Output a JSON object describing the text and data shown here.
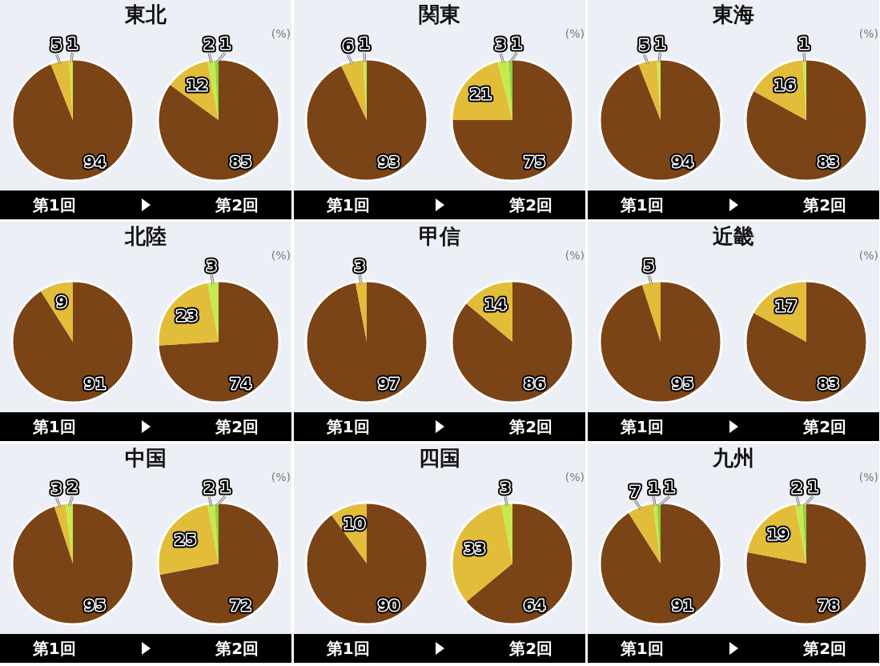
{
  "chart_data": [
    {
      "type": "pie",
      "title": "東北",
      "xlabel": "第1回",
      "categories": [
        null,
        null,
        null
      ],
      "values": [
        94,
        5,
        1
      ],
      "colors": [
        "#7b4416",
        "#e2bd3a",
        "#c6ea4e"
      ],
      "data_labels": true
    },
    {
      "type": "pie",
      "xlabel": "第2回",
      "annotations": [
        "(%)"
      ],
      "categories": [
        null,
        null,
        null,
        null
      ],
      "values": [
        85,
        12,
        2,
        1
      ],
      "colors": [
        "#7b4416",
        "#e2bd3a",
        "#c6ea4e",
        "#8fcf3c"
      ],
      "data_labels": true
    },
    {
      "type": "pie",
      "title": "関東",
      "xlabel": "第1回",
      "categories": [
        null,
        null,
        null
      ],
      "values": [
        93,
        6,
        1
      ],
      "colors": [
        "#7b4416",
        "#e2bd3a",
        "#c6ea4e"
      ],
      "data_labels": true
    },
    {
      "type": "pie",
      "xlabel": "第2回",
      "annotations": [
        "(%)"
      ],
      "categories": [
        null,
        null,
        null,
        null
      ],
      "values": [
        75,
        21,
        3,
        1
      ],
      "colors": [
        "#7b4416",
        "#e2bd3a",
        "#c6ea4e",
        "#8fcf3c"
      ],
      "data_labels": true
    },
    {
      "type": "pie",
      "title": "東海",
      "xlabel": "第1回",
      "categories": [
        null,
        null,
        null
      ],
      "values": [
        94,
        5,
        1
      ],
      "colors": [
        "#7b4416",
        "#e2bd3a",
        "#c6ea4e"
      ],
      "data_labels": true
    },
    {
      "type": "pie",
      "xlabel": "第2回",
      "annotations": [
        "(%)"
      ],
      "categories": [
        null,
        null,
        null
      ],
      "values": [
        83,
        16,
        1
      ],
      "colors": [
        "#7b4416",
        "#e2bd3a",
        "#c6ea4e"
      ],
      "data_labels": true
    },
    {
      "type": "pie",
      "title": "北陸",
      "xlabel": "第1回",
      "categories": [
        null,
        null
      ],
      "values": [
        91,
        9
      ],
      "colors": [
        "#7b4416",
        "#e2bd3a"
      ],
      "data_labels": true
    },
    {
      "type": "pie",
      "xlabel": "第2回",
      "annotations": [
        "(%)"
      ],
      "categories": [
        null,
        null,
        null
      ],
      "values": [
        74,
        23,
        3
      ],
      "colors": [
        "#7b4416",
        "#e2bd3a",
        "#c6ea4e"
      ],
      "data_labels": true
    },
    {
      "type": "pie",
      "title": "甲信",
      "xlabel": "第1回",
      "categories": [
        null,
        null
      ],
      "values": [
        97,
        3
      ],
      "colors": [
        "#7b4416",
        "#e2bd3a"
      ],
      "data_labels": true
    },
    {
      "type": "pie",
      "xlabel": "第2回",
      "annotations": [
        "(%)"
      ],
      "categories": [
        null,
        null
      ],
      "values": [
        86,
        14
      ],
      "colors": [
        "#7b4416",
        "#e2bd3a"
      ],
      "data_labels": true
    },
    {
      "type": "pie",
      "title": "近畿",
      "xlabel": "第1回",
      "categories": [
        null,
        null
      ],
      "values": [
        95,
        5
      ],
      "colors": [
        "#7b4416",
        "#e2bd3a"
      ],
      "data_labels": true
    },
    {
      "type": "pie",
      "xlabel": "第2回",
      "annotations": [
        "(%)"
      ],
      "categories": [
        null,
        null
      ],
      "values": [
        83,
        17
      ],
      "colors": [
        "#7b4416",
        "#e2bd3a"
      ],
      "data_labels": true
    },
    {
      "type": "pie",
      "title": "中国",
      "xlabel": "第1回",
      "categories": [
        null,
        null,
        null
      ],
      "values": [
        95,
        3,
        2
      ],
      "colors": [
        "#7b4416",
        "#e2bd3a",
        "#c6ea4e"
      ],
      "data_labels": true
    },
    {
      "type": "pie",
      "xlabel": "第2回",
      "annotations": [
        "(%)"
      ],
      "categories": [
        null,
        null,
        null,
        null
      ],
      "values": [
        72,
        25,
        2,
        1
      ],
      "colors": [
        "#7b4416",
        "#e2bd3a",
        "#c6ea4e",
        "#8fcf3c"
      ],
      "data_labels": true
    },
    {
      "type": "pie",
      "title": "四国",
      "xlabel": "第1回",
      "categories": [
        null,
        null
      ],
      "values": [
        90,
        10
      ],
      "colors": [
        "#7b4416",
        "#e2bd3a"
      ],
      "data_labels": true
    },
    {
      "type": "pie",
      "xlabel": "第2回",
      "annotations": [
        "(%)"
      ],
      "categories": [
        null,
        null,
        null
      ],
      "values": [
        64,
        33,
        3
      ],
      "colors": [
        "#7b4416",
        "#e2bd3a",
        "#c6ea4e"
      ],
      "data_labels": true
    },
    {
      "type": "pie",
      "title": "九州",
      "xlabel": "第1回",
      "categories": [
        null,
        null,
        null,
        null
      ],
      "values": [
        91,
        7,
        1,
        1
      ],
      "colors": [
        "#7b4416",
        "#e2bd3a",
        "#c6ea4e",
        "#8fcf3c"
      ],
      "data_labels": true
    },
    {
      "type": "pie",
      "xlabel": "第2回",
      "annotations": [
        "(%)"
      ],
      "categories": [
        null,
        null,
        null,
        null
      ],
      "values": [
        78,
        19,
        2,
        1
      ],
      "colors": [
        "#7b4416",
        "#e2bd3a",
        "#c6ea4e",
        "#8fcf3c"
      ],
      "data_labels": true
    }
  ]
}
